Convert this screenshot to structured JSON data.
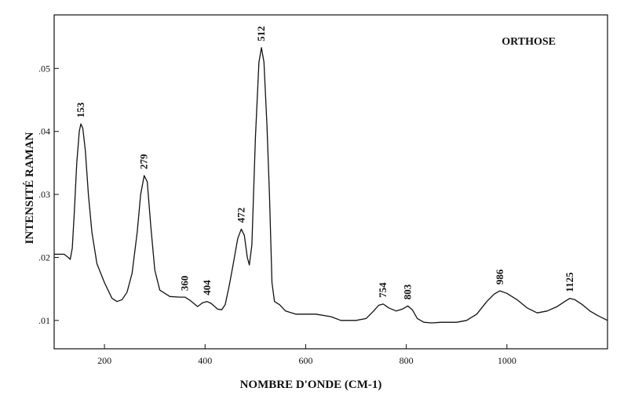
{
  "chart_data": {
    "type": "line",
    "title": "ORTHOSE",
    "xlabel": "NOMBRE D'ONDE (CM-1)",
    "ylabel": "INTENSITÉ RAMAN",
    "xlim": [
      100,
      1200
    ],
    "ylim": [
      0.0055,
      0.0585
    ],
    "x_ticks": [
      200,
      400,
      600,
      800,
      1000
    ],
    "x_tick_labels": [
      "200",
      "400",
      "600",
      "800",
      "1000"
    ],
    "y_ticks": [
      0.01,
      0.02,
      0.03,
      0.04,
      0.05
    ],
    "y_tick_labels": [
      ".01",
      ".02",
      ".03",
      ".04",
      ".05"
    ],
    "grid": false,
    "legend": "none",
    "line_color": "#111111",
    "peaks": [
      {
        "x": 153,
        "label": "153"
      },
      {
        "x": 279,
        "label": "279"
      },
      {
        "x": 360,
        "label": "360"
      },
      {
        "x": 404,
        "label": "404"
      },
      {
        "x": 472,
        "label": "472"
      },
      {
        "x": 512,
        "label": "512"
      },
      {
        "x": 754,
        "label": "754"
      },
      {
        "x": 803,
        "label": "803"
      },
      {
        "x": 986,
        "label": "986"
      },
      {
        "x": 1125,
        "label": "1125"
      }
    ],
    "series": [
      {
        "points": [
          [
            100,
            0.0205
          ],
          [
            120,
            0.0205
          ],
          [
            128,
            0.02
          ],
          [
            132,
            0.0197
          ],
          [
            136,
            0.0215
          ],
          [
            140,
            0.027
          ],
          [
            145,
            0.035
          ],
          [
            150,
            0.04
          ],
          [
            153,
            0.0412
          ],
          [
            157,
            0.0405
          ],
          [
            162,
            0.037
          ],
          [
            168,
            0.03
          ],
          [
            175,
            0.024
          ],
          [
            185,
            0.019
          ],
          [
            200,
            0.016
          ],
          [
            215,
            0.0135
          ],
          [
            225,
            0.013
          ],
          [
            235,
            0.0133
          ],
          [
            245,
            0.0145
          ],
          [
            255,
            0.0175
          ],
          [
            265,
            0.024
          ],
          [
            272,
            0.03
          ],
          [
            279,
            0.033
          ],
          [
            285,
            0.032
          ],
          [
            292,
            0.025
          ],
          [
            300,
            0.018
          ],
          [
            310,
            0.0148
          ],
          [
            330,
            0.0138
          ],
          [
            350,
            0.0137
          ],
          [
            360,
            0.0137
          ],
          [
            370,
            0.0132
          ],
          [
            385,
            0.0122
          ],
          [
            395,
            0.0128
          ],
          [
            404,
            0.013
          ],
          [
            412,
            0.0127
          ],
          [
            425,
            0.0118
          ],
          [
            433,
            0.0117
          ],
          [
            440,
            0.0125
          ],
          [
            448,
            0.0155
          ],
          [
            455,
            0.0185
          ],
          [
            465,
            0.023
          ],
          [
            472,
            0.0245
          ],
          [
            478,
            0.0235
          ],
          [
            484,
            0.02
          ],
          [
            488,
            0.0188
          ],
          [
            493,
            0.022
          ],
          [
            500,
            0.039
          ],
          [
            507,
            0.051
          ],
          [
            512,
            0.0533
          ],
          [
            517,
            0.051
          ],
          [
            523,
            0.041
          ],
          [
            528,
            0.03
          ],
          [
            533,
            0.016
          ],
          [
            538,
            0.013
          ],
          [
            548,
            0.0125
          ],
          [
            560,
            0.0115
          ],
          [
            580,
            0.011
          ],
          [
            600,
            0.011
          ],
          [
            620,
            0.011
          ],
          [
            650,
            0.0106
          ],
          [
            670,
            0.01
          ],
          [
            700,
            0.01
          ],
          [
            720,
            0.0103
          ],
          [
            735,
            0.0115
          ],
          [
            745,
            0.0124
          ],
          [
            754,
            0.0126
          ],
          [
            765,
            0.012
          ],
          [
            780,
            0.0115
          ],
          [
            792,
            0.0118
          ],
          [
            803,
            0.0123
          ],
          [
            812,
            0.0117
          ],
          [
            822,
            0.0103
          ],
          [
            835,
            0.0097
          ],
          [
            850,
            0.0096
          ],
          [
            870,
            0.0097
          ],
          [
            900,
            0.0097
          ],
          [
            920,
            0.01
          ],
          [
            940,
            0.011
          ],
          [
            960,
            0.013
          ],
          [
            975,
            0.0142
          ],
          [
            986,
            0.0147
          ],
          [
            1000,
            0.0143
          ],
          [
            1020,
            0.0133
          ],
          [
            1040,
            0.012
          ],
          [
            1060,
            0.0112
          ],
          [
            1080,
            0.0115
          ],
          [
            1100,
            0.0122
          ],
          [
            1115,
            0.013
          ],
          [
            1125,
            0.0135
          ],
          [
            1135,
            0.0133
          ],
          [
            1150,
            0.0125
          ],
          [
            1165,
            0.0115
          ],
          [
            1180,
            0.0108
          ],
          [
            1200,
            0.01
          ]
        ]
      }
    ]
  }
}
